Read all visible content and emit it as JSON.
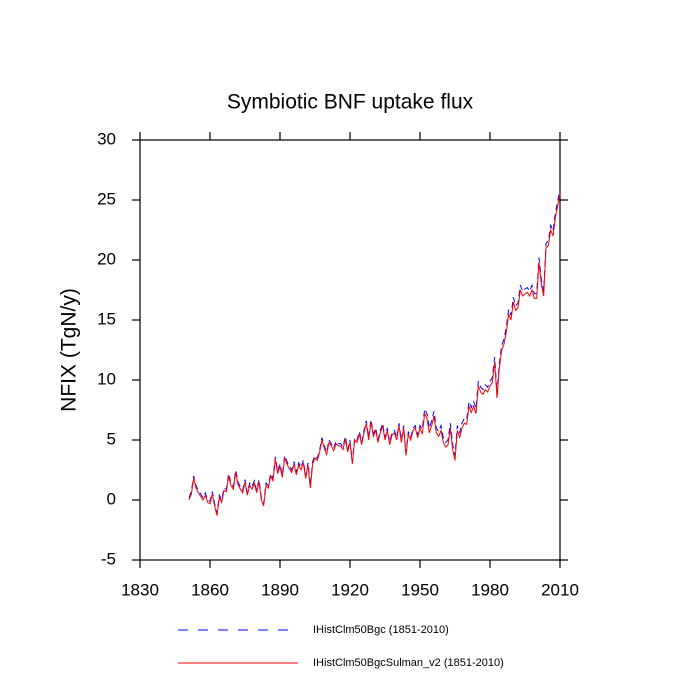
{
  "chart_data": {
    "type": "line",
    "title": "Symbiotic BNF uptake flux",
    "y_label": "NFIX  (TgN/y)",
    "xlim": [
      1830,
      2010
    ],
    "xticks": [
      1830,
      1860,
      1890,
      1920,
      1950,
      1980,
      2010
    ],
    "ylim": [
      -5,
      30
    ],
    "yticks": [
      -5,
      0,
      5,
      10,
      15,
      20,
      25,
      30
    ],
    "x": [
      1851,
      1852,
      1853,
      1854,
      1855,
      1856,
      1857,
      1858,
      1859,
      1860,
      1861,
      1862,
      1863,
      1864,
      1865,
      1866,
      1867,
      1868,
      1869,
      1870,
      1871,
      1872,
      1873,
      1874,
      1875,
      1876,
      1877,
      1878,
      1879,
      1880,
      1881,
      1882,
      1883,
      1884,
      1885,
      1886,
      1887,
      1888,
      1889,
      1890,
      1891,
      1892,
      1893,
      1894,
      1895,
      1896,
      1897,
      1898,
      1899,
      1900,
      1901,
      1902,
      1903,
      1904,
      1905,
      1906,
      1907,
      1908,
      1909,
      1910,
      1911,
      1912,
      1913,
      1914,
      1915,
      1916,
      1917,
      1918,
      1919,
      1920,
      1921,
      1922,
      1923,
      1924,
      1925,
      1926,
      1927,
      1928,
      1929,
      1930,
      1931,
      1932,
      1933,
      1934,
      1935,
      1936,
      1937,
      1938,
      1939,
      1940,
      1941,
      1942,
      1943,
      1944,
      1945,
      1946,
      1947,
      1948,
      1949,
      1950,
      1951,
      1952,
      1953,
      1954,
      1955,
      1956,
      1957,
      1958,
      1959,
      1960,
      1961,
      1962,
      1963,
      1964,
      1965,
      1966,
      1967,
      1968,
      1969,
      1970,
      1971,
      1972,
      1973,
      1974,
      1975,
      1976,
      1977,
      1978,
      1979,
      1980,
      1981,
      1982,
      1983,
      1984,
      1985,
      1986,
      1987,
      1988,
      1989,
      1990,
      1991,
      1992,
      1993,
      1994,
      1995,
      1996,
      1997,
      1998,
      1999,
      2000,
      2001,
      2002,
      2003,
      2004,
      2005,
      2006,
      2007,
      2008,
      2009,
      2010
    ],
    "series": [
      {
        "name": "IHistClm50Bgc (1851-2010)",
        "color": "#0000ff",
        "line_style": "dashed",
        "values": [
          0.2,
          0.7,
          2.0,
          1.2,
          0.8,
          0.5,
          0.2,
          0.6,
          0.0,
          -0.1,
          0.7,
          -0.3,
          -1.1,
          0.4,
          0.0,
          1.0,
          0.9,
          2.2,
          1.4,
          1.1,
          2.5,
          1.5,
          1.1,
          0.8,
          1.7,
          0.6,
          1.4,
          1.1,
          1.6,
          0.8,
          1.7,
          0.2,
          -0.3,
          1.4,
          1.2,
          2.2,
          1.8,
          3.6,
          2.4,
          3.0,
          2.1,
          3.7,
          3.2,
          2.8,
          2.5,
          3.2,
          2.3,
          3.1,
          2.7,
          3.3,
          2.0,
          3.1,
          1.2,
          3.2,
          3.7,
          3.5,
          4.2,
          5.2,
          4.5,
          4.0,
          5.0,
          4.7,
          4.3,
          4.9,
          4.7,
          4.7,
          4.4,
          5.3,
          4.2,
          5.0,
          3.2,
          5.2,
          5.0,
          5.7,
          4.8,
          5.8,
          6.6,
          5.2,
          6.7,
          5.5,
          6.0,
          5.0,
          5.8,
          6.4,
          5.2,
          6.0,
          4.8,
          5.6,
          5.8,
          5.2,
          6.4,
          5.0,
          6.2,
          3.9,
          5.7,
          5.2,
          6.0,
          6.2,
          5.4,
          6.2,
          5.9,
          7.6,
          7.2,
          6.0,
          6.6,
          7.4,
          6.0,
          5.7,
          6.2,
          5.2,
          4.8,
          5.0,
          6.4,
          4.6,
          3.7,
          6.2,
          5.6,
          6.4,
          6.8,
          6.7,
          8.2,
          7.7,
          8.2,
          7.6,
          9.9,
          9.4,
          9.2,
          9.6,
          9.4,
          9.9,
          10.2,
          11.9,
          8.9,
          11.4,
          12.9,
          13.4,
          14.4,
          15.9,
          15.4,
          16.9,
          16.2,
          16.4,
          17.9,
          17.4,
          17.6,
          17.7,
          17.4,
          17.9,
          17.2,
          17.2,
          20.2,
          18.4,
          17.4,
          21.4,
          21.6,
          22.9,
          22.4,
          23.9,
          24.9,
          25.9
        ]
      },
      {
        "name": "IHistClm50BgcSulman_v2 (1851-2010)",
        "color": "#ff0000",
        "line_style": "solid",
        "values": [
          0.0,
          0.5,
          1.8,
          1.0,
          0.6,
          0.3,
          0.0,
          0.4,
          -0.2,
          -0.3,
          0.5,
          -0.5,
          -1.3,
          0.2,
          -0.2,
          0.8,
          0.7,
          2.0,
          1.2,
          0.9,
          2.3,
          1.3,
          0.9,
          0.6,
          1.5,
          0.4,
          1.2,
          0.9,
          1.4,
          0.6,
          1.5,
          0.0,
          -0.5,
          1.2,
          1.0,
          2.0,
          1.6,
          3.4,
          2.2,
          2.8,
          1.9,
          3.5,
          3.0,
          2.6,
          2.3,
          3.0,
          2.1,
          2.9,
          2.5,
          3.1,
          1.8,
          2.9,
          1.0,
          3.0,
          3.5,
          3.3,
          4.0,
          5.0,
          4.3,
          3.8,
          4.8,
          4.5,
          4.1,
          4.7,
          4.5,
          4.5,
          4.2,
          5.1,
          4.0,
          4.8,
          3.0,
          5.0,
          4.8,
          5.5,
          4.6,
          5.6,
          6.4,
          5.0,
          6.5,
          5.3,
          5.8,
          4.8,
          5.6,
          6.2,
          5.0,
          5.8,
          4.6,
          5.4,
          5.6,
          5.0,
          6.2,
          4.8,
          6.0,
          3.7,
          5.5,
          5.0,
          5.8,
          6.0,
          5.2,
          6.0,
          5.5,
          7.2,
          6.8,
          5.6,
          6.2,
          7.0,
          5.6,
          5.3,
          5.8,
          4.8,
          4.4,
          4.6,
          6.0,
          4.2,
          3.3,
          5.8,
          5.2,
          6.0,
          6.4,
          6.3,
          7.8,
          7.3,
          7.8,
          7.2,
          9.5,
          9.0,
          8.8,
          9.2,
          9.0,
          9.5,
          9.8,
          11.5,
          8.5,
          11.0,
          12.5,
          13.0,
          14.0,
          15.5,
          15.0,
          16.5,
          15.8,
          16.0,
          17.5,
          17.0,
          17.2,
          17.3,
          17.0,
          17.5,
          16.8,
          16.8,
          19.8,
          18.0,
          17.0,
          21.0,
          21.2,
          22.5,
          22.0,
          23.5,
          24.5,
          25.5
        ]
      }
    ]
  }
}
